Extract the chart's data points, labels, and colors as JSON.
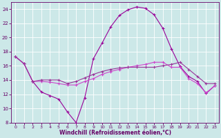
{
  "xlabel": "Windchill (Refroidissement éolien,°C)",
  "xlim": [
    -0.5,
    23.5
  ],
  "ylim": [
    8,
    25
  ],
  "yticks": [
    8,
    10,
    12,
    14,
    16,
    18,
    20,
    22,
    24
  ],
  "xticks": [
    0,
    1,
    2,
    3,
    4,
    5,
    6,
    7,
    8,
    9,
    10,
    11,
    12,
    13,
    14,
    15,
    16,
    17,
    18,
    19,
    20,
    21,
    22,
    23
  ],
  "bg_color": "#cce8e8",
  "grid_color": "#aacccc",
  "line1_x": [
    0,
    1,
    2,
    3,
    4,
    5,
    6,
    7,
    8,
    9,
    10,
    11,
    12,
    13,
    14,
    15,
    16,
    17,
    18,
    19,
    20,
    21,
    22,
    23
  ],
  "line1_y": [
    17.3,
    16.3,
    13.8,
    12.3,
    11.8,
    11.3,
    9.5,
    8.0,
    11.5,
    17.0,
    19.2,
    21.5,
    23.1,
    23.9,
    24.3,
    24.1,
    23.2,
    21.3,
    18.4,
    15.9,
    14.5,
    13.8,
    12.1,
    13.2
  ],
  "line2_x": [
    0,
    1,
    2,
    3,
    4,
    5,
    6,
    7,
    8,
    9,
    10,
    11,
    12,
    13,
    14,
    15,
    16,
    17,
    18,
    19,
    20,
    21,
    22,
    23
  ],
  "line2_y": [
    17.3,
    16.3,
    13.8,
    13.8,
    13.7,
    13.5,
    13.3,
    13.3,
    13.8,
    14.2,
    14.8,
    15.2,
    15.5,
    15.8,
    16.0,
    16.2,
    16.5,
    16.5,
    15.8,
    15.8,
    14.2,
    13.5,
    12.2,
    13.2
  ],
  "line3_x": [
    0,
    1,
    2,
    3,
    4,
    5,
    6,
    7,
    8,
    9,
    10,
    11,
    12,
    13,
    14,
    15,
    16,
    17,
    18,
    19,
    20,
    21,
    22,
    23
  ],
  "line3_y": [
    17.3,
    16.3,
    13.8,
    14.0,
    14.0,
    14.0,
    13.5,
    13.8,
    14.3,
    14.8,
    15.2,
    15.5,
    15.7,
    15.8,
    15.8,
    15.8,
    15.8,
    16.0,
    16.2,
    16.5,
    15.5,
    14.5,
    13.5,
    13.5
  ],
  "line_color1": "#990099",
  "line_color2": "#cc44cc",
  "line_color3": "#993399",
  "marker": "+"
}
